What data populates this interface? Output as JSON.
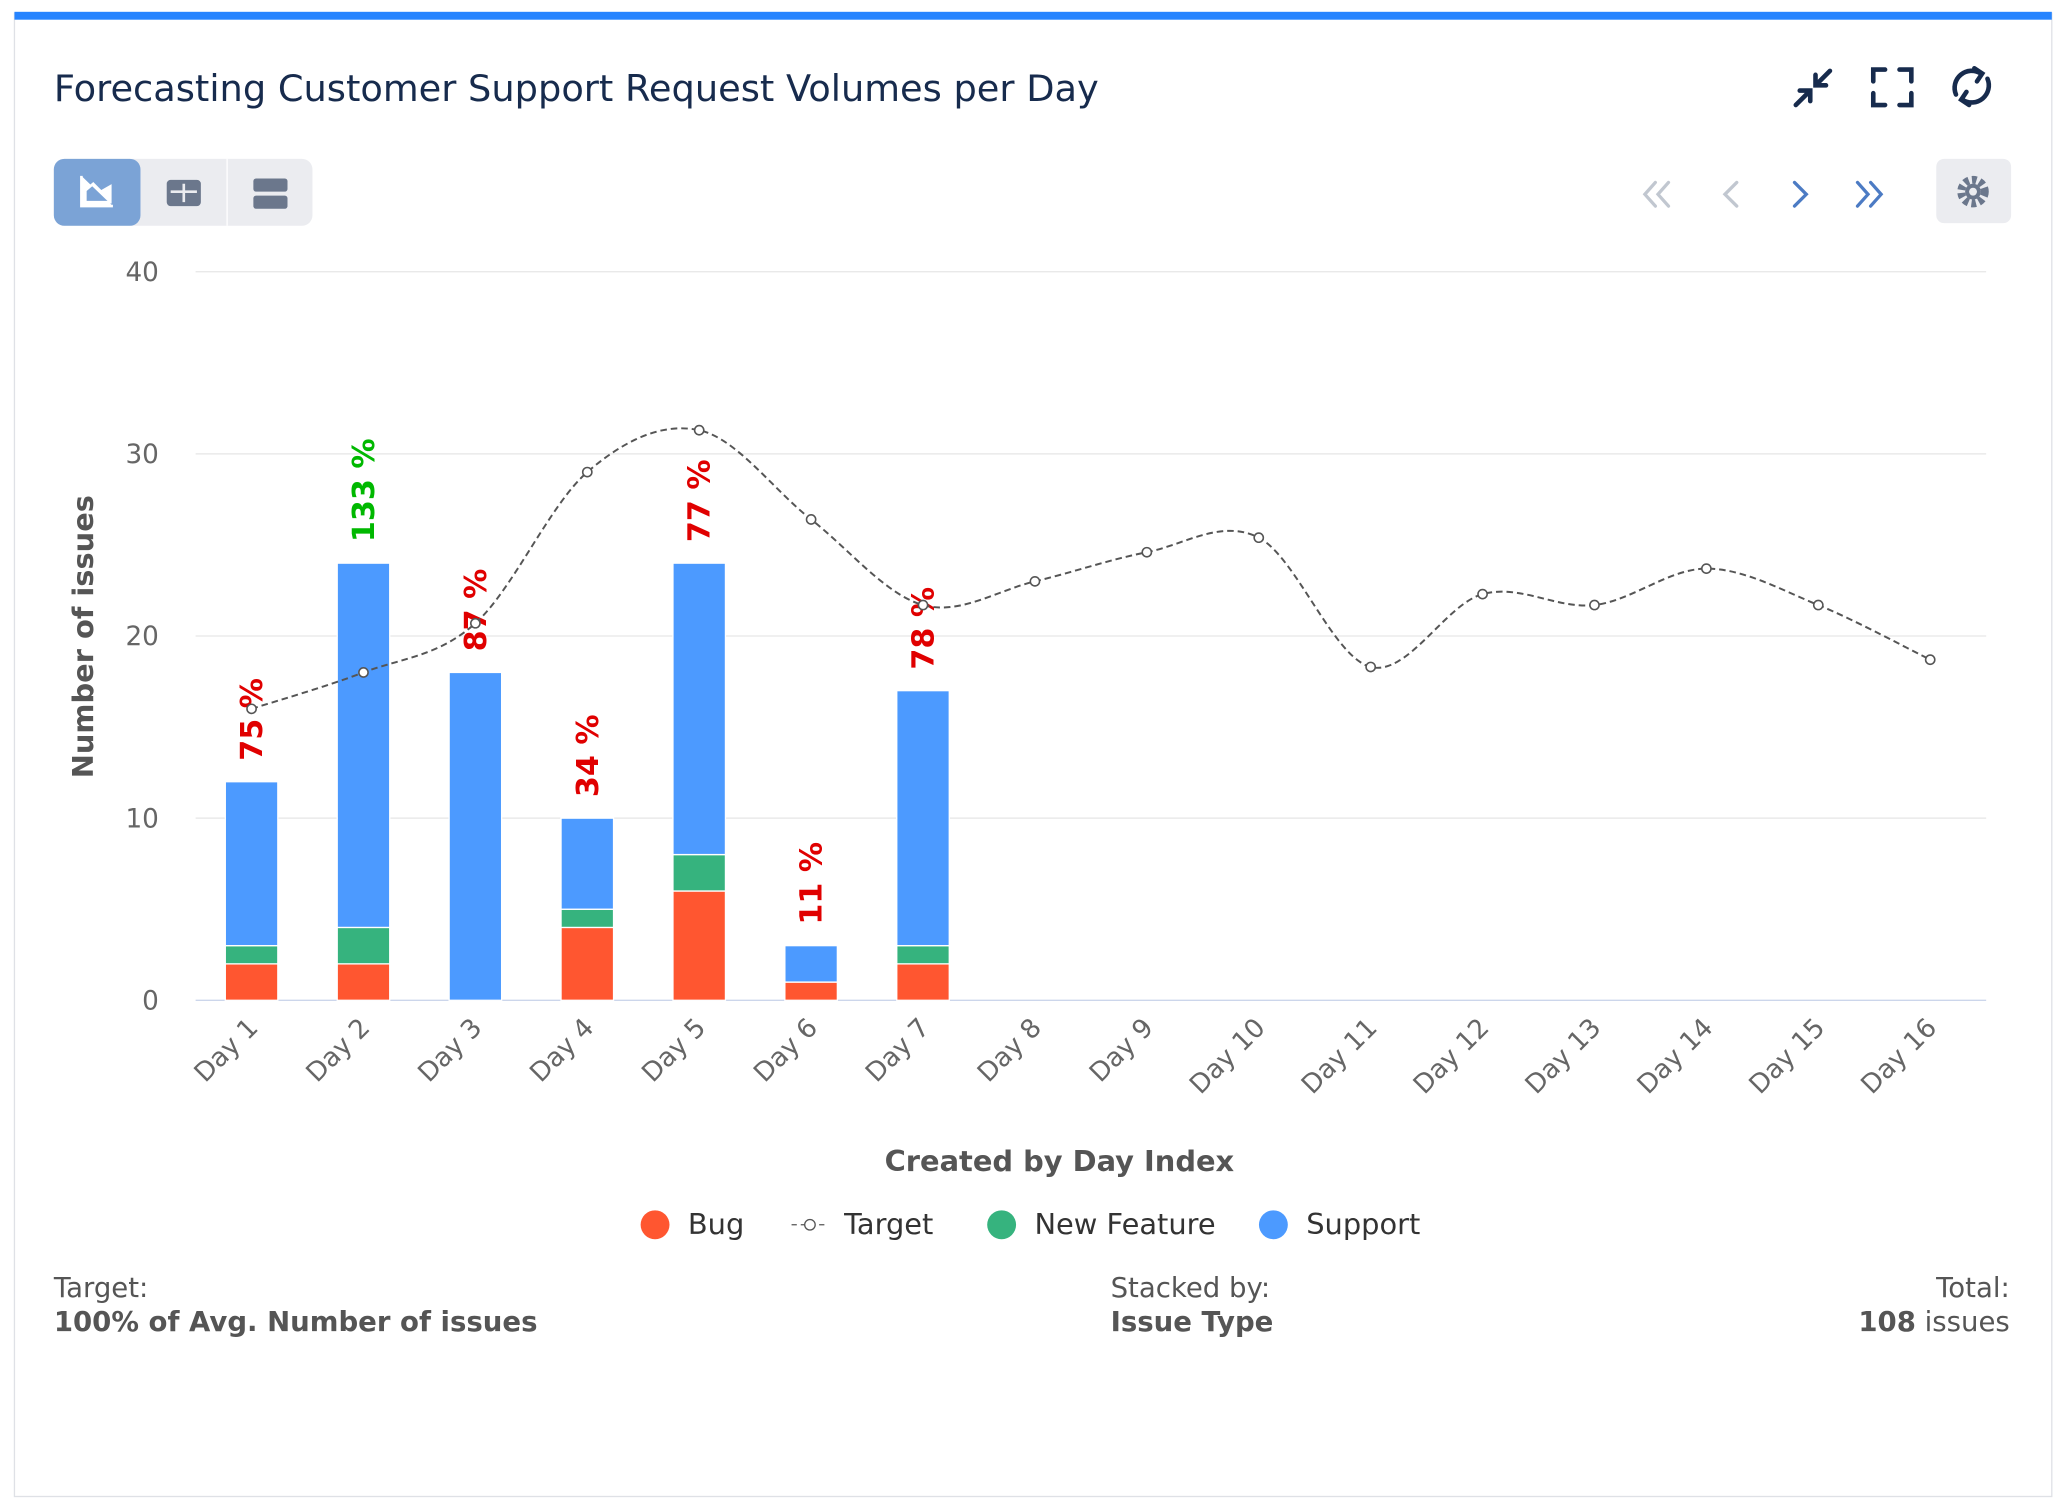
{
  "header": {
    "title": "Forecasting Customer Support Request Volumes per Day"
  },
  "chart_data": {
    "type": "bar",
    "stacked": true,
    "y_label": "Number of issues",
    "x_label": "Created by Day Index",
    "categories": [
      "Day 1",
      "Day 2",
      "Day 3",
      "Day 4",
      "Day 5",
      "Day 6",
      "Day 7",
      "Day 8",
      "Day 9",
      "Day 10",
      "Day 11",
      "Day 12",
      "Day 13",
      "Day 14",
      "Day 15",
      "Day 16"
    ],
    "series": [
      {
        "name": "Bug",
        "color": "#ff5630",
        "values": [
          2,
          2,
          0,
          4,
          6,
          1,
          2,
          null,
          null,
          null,
          null,
          null,
          null,
          null,
          null,
          null
        ]
      },
      {
        "name": "Target",
        "type": "line",
        "color": "#555555",
        "values": [
          16,
          18,
          20.7,
          29,
          31.3,
          26.4,
          21.7,
          23,
          24.6,
          25.4,
          18.3,
          22.3,
          21.7,
          23.7,
          21.7,
          18.7
        ]
      },
      {
        "name": "New Feature",
        "color": "#36b37e",
        "values": [
          1,
          2,
          0,
          1,
          2,
          0,
          1,
          null,
          null,
          null,
          null,
          null,
          null,
          null,
          null,
          null
        ]
      },
      {
        "name": "Support",
        "color": "#4c9aff",
        "values": [
          9,
          20,
          18,
          5,
          16,
          2,
          14,
          null,
          null,
          null,
          null,
          null,
          null,
          null,
          null,
          null
        ]
      }
    ],
    "percent_labels": [
      {
        "text": "75 %",
        "color": "#e00000"
      },
      {
        "text": "133 %",
        "color": "#00b800"
      },
      {
        "text": "87 %",
        "color": "#e00000"
      },
      {
        "text": "34 %",
        "color": "#e00000"
      },
      {
        "text": "77 %",
        "color": "#e00000"
      },
      {
        "text": "11 %",
        "color": "#e00000"
      },
      {
        "text": "78 %",
        "color": "#e00000"
      }
    ],
    "ylim": [
      0,
      40
    ],
    "yticks": [
      0,
      10,
      20,
      30,
      40
    ],
    "grid": true
  },
  "footer": {
    "target_label": "Target:",
    "target_value": "100% of Avg. Number of issues",
    "stacked_label": "Stacked by:",
    "stacked_value": "Issue Type",
    "total_label": "Total:",
    "total_value": "108",
    "total_unit": "issues"
  }
}
